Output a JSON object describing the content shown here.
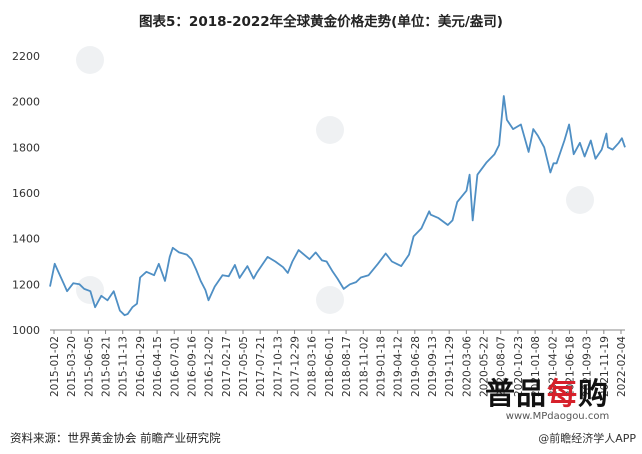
{
  "title": "图表5：2018-2022年全球黄金价格走势(单位：美元/盎司)",
  "source": "资料来源：世界黄金协会 前瞻产业研究院",
  "credit": "@前瞻经济学人APP",
  "logo": {
    "part1": "普品",
    "part2": "每",
    "part3": "购",
    "url": "www.MPdaogou.com"
  },
  "colors": {
    "line": "#4f8fc4",
    "axis": "#888888"
  },
  "chart_data": {
    "type": "line",
    "title": "图表5：2018-2022年全球黄金价格走势(单位：美元/盎司)",
    "xlabel": "",
    "ylabel": "",
    "ylim": [
      1000,
      2200
    ],
    "yticks": [
      1000,
      1200,
      1400,
      1600,
      1800,
      2000,
      2200
    ],
    "grid": false,
    "x_start": "2015-01-02",
    "x_end": "2022-02-04",
    "xtick_labels": [
      "2015-01-02",
      "2015-03-20",
      "2015-06-05",
      "2015-08-21",
      "2015-11-13",
      "2016-01-29",
      "2016-04-15",
      "2016-07-01",
      "2016-09-16",
      "2016-12-02",
      "2017-02-17",
      "2017-05-05",
      "2017-07-21",
      "2017-10-13",
      "2017-12-29",
      "2018-03-16",
      "2018-06-01",
      "2018-08-17",
      "2018-11-02",
      "2019-01-18",
      "2019-04-12",
      "2019-06-28",
      "2019-09-13",
      "2019-11-29",
      "2020-03-06",
      "2020-05-22",
      "2020-08-07",
      "2020-10-23",
      "2021-01-08",
      "2021-04-02",
      "2021-06-18",
      "2021-09-03",
      "2021-11-19",
      "2022-02-04"
    ],
    "series": [
      {
        "x": [
          "2015-01-02",
          "2015-01-23",
          "2015-02-06",
          "2015-03-06",
          "2015-03-20",
          "2015-04-17",
          "2015-05-15",
          "2015-06-05",
          "2015-07-03",
          "2015-07-24",
          "2015-08-21",
          "2015-09-18",
          "2015-10-16",
          "2015-11-13",
          "2015-12-04",
          "2015-12-18",
          "2016-01-08",
          "2016-01-29",
          "2016-02-12",
          "2016-03-11",
          "2016-04-15",
          "2016-05-06",
          "2016-06-03",
          "2016-06-24",
          "2016-07-08",
          "2016-08-05",
          "2016-09-09",
          "2016-09-30",
          "2016-10-21",
          "2016-11-11",
          "2016-12-02",
          "2016-12-16",
          "2017-01-13",
          "2017-02-17",
          "2017-03-17",
          "2017-04-14",
          "2017-05-05",
          "2017-06-09",
          "2017-07-07",
          "2017-07-21",
          "2017-08-18",
          "2017-09-08",
          "2017-10-13",
          "2017-11-17",
          "2017-12-08",
          "2017-12-29",
          "2018-01-26",
          "2018-03-16",
          "2018-04-13",
          "2018-05-11",
          "2018-06-01",
          "2018-06-29",
          "2018-07-20",
          "2018-08-17",
          "2018-09-14",
          "2018-10-12",
          "2018-11-02",
          "2018-12-07",
          "2019-01-18",
          "2019-02-22",
          "2019-03-22",
          "2019-04-12",
          "2019-05-03",
          "2019-06-07",
          "2019-06-28",
          "2019-08-02",
          "2019-09-06",
          "2019-09-13",
          "2019-10-18",
          "2019-11-29",
          "2019-12-20",
          "2020-01-10",
          "2020-02-21",
          "2020-03-06",
          "2020-03-20",
          "2020-04-10",
          "2020-05-22",
          "2020-06-26",
          "2020-07-17",
          "2020-08-07",
          "2020-08-21",
          "2020-09-18",
          "2020-10-23",
          "2020-11-27",
          "2020-12-18",
          "2021-01-08",
          "2021-02-05",
          "2021-03-05",
          "2021-03-19",
          "2021-04-02",
          "2021-05-07",
          "2021-05-28",
          "2021-06-18",
          "2021-07-16",
          "2021-08-06",
          "2021-09-03",
          "2021-09-24",
          "2021-10-22",
          "2021-11-12",
          "2021-11-19",
          "2021-12-10",
          "2022-01-07",
          "2022-01-21",
          "2022-02-04"
        ],
        "values": [
          1190,
          1290,
          1260,
          1200,
          1170,
          1205,
          1200,
          1180,
          1170,
          1100,
          1150,
          1130,
          1170,
          1085,
          1065,
          1070,
          1100,
          1115,
          1230,
          1255,
          1240,
          1290,
          1215,
          1320,
          1360,
          1340,
          1330,
          1310,
          1265,
          1215,
          1175,
          1130,
          1190,
          1240,
          1235,
          1285,
          1228,
          1280,
          1225,
          1250,
          1290,
          1320,
          1300,
          1275,
          1250,
          1300,
          1350,
          1310,
          1340,
          1305,
          1300,
          1255,
          1225,
          1180,
          1200,
          1210,
          1230,
          1240,
          1290,
          1335,
          1300,
          1290,
          1280,
          1330,
          1410,
          1445,
          1520,
          1505,
          1490,
          1460,
          1480,
          1560,
          1610,
          1680,
          1480,
          1680,
          1735,
          1770,
          1810,
          2025,
          1920,
          1880,
          1900,
          1780,
          1880,
          1850,
          1800,
          1690,
          1730,
          1730,
          1830,
          1900,
          1770,
          1820,
          1760,
          1830,
          1750,
          1790,
          1860,
          1800,
          1790,
          1820,
          1840,
          1800
        ]
      }
    ]
  }
}
